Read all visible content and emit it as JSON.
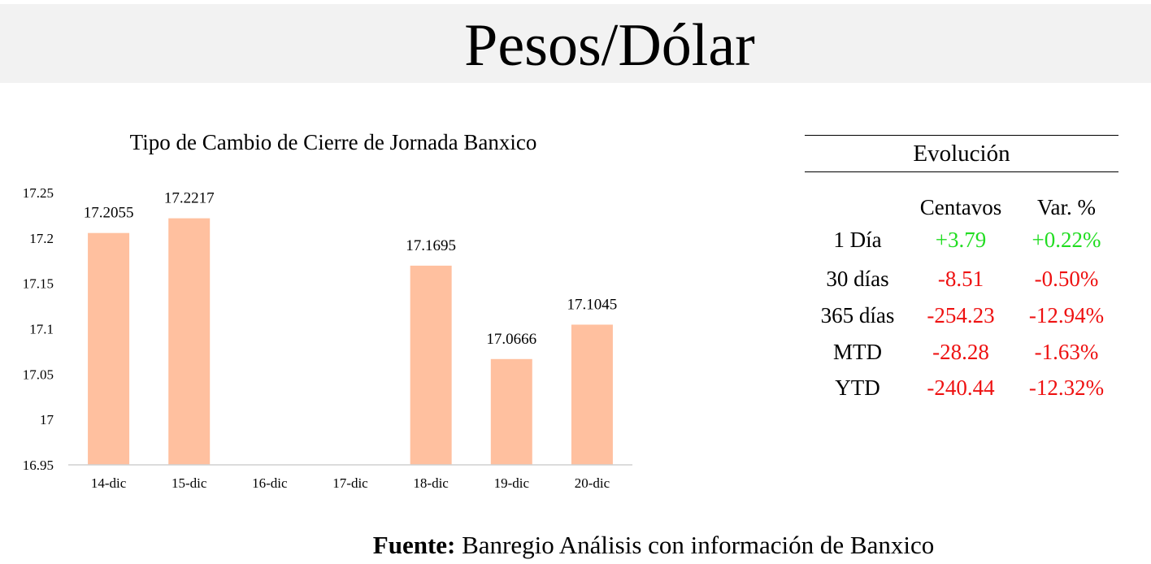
{
  "page_title": "Pesos/Dólar",
  "chart_data": {
    "type": "bar",
    "title": "Tipo de Cambio de Cierre de Jornada Banxico",
    "categories": [
      "14-dic",
      "15-dic",
      "16-dic",
      "17-dic",
      "18-dic",
      "19-dic",
      "20-dic"
    ],
    "values": [
      17.2055,
      17.2217,
      null,
      null,
      17.1695,
      17.0666,
      17.1045
    ],
    "data_labels": [
      "17.2055",
      "17.2217",
      "",
      "",
      "17.1695",
      "17.0666",
      "17.1045"
    ],
    "ylim": [
      16.95,
      17.25
    ],
    "yticks": [
      16.95,
      17,
      17.05,
      17.1,
      17.15,
      17.2,
      17.25
    ],
    "ytick_labels": [
      "16.95",
      "17",
      "17.05",
      "17.1",
      "17.15",
      "17.2",
      "17.25"
    ],
    "bar_color": "#ffc09f",
    "grid": false,
    "xlabel": "",
    "ylabel": ""
  },
  "evolucion": {
    "title": "Evolución",
    "headers": {
      "centavos": "Centavos",
      "var": "Var. %"
    },
    "rows": [
      {
        "label": "1 Día",
        "centavos": "+3.79",
        "var": "+0.22%",
        "sign": "pos"
      },
      {
        "label": "30 días",
        "centavos": "-8.51",
        "var": "-0.50%",
        "sign": "neg"
      },
      {
        "label": "365 días",
        "centavos": "-254.23",
        "var": "-12.94%",
        "sign": "neg"
      },
      {
        "label": "MTD",
        "centavos": "-28.28",
        "var": "-1.63%",
        "sign": "neg"
      },
      {
        "label": "YTD",
        "centavos": "-240.44",
        "var": "-12.32%",
        "sign": "neg"
      }
    ],
    "colors": {
      "pos": "#22dd22",
      "neg": "#ee1111"
    }
  },
  "source": {
    "label": "Fuente:",
    "text": " Banregio Análisis con información de Banxico"
  }
}
